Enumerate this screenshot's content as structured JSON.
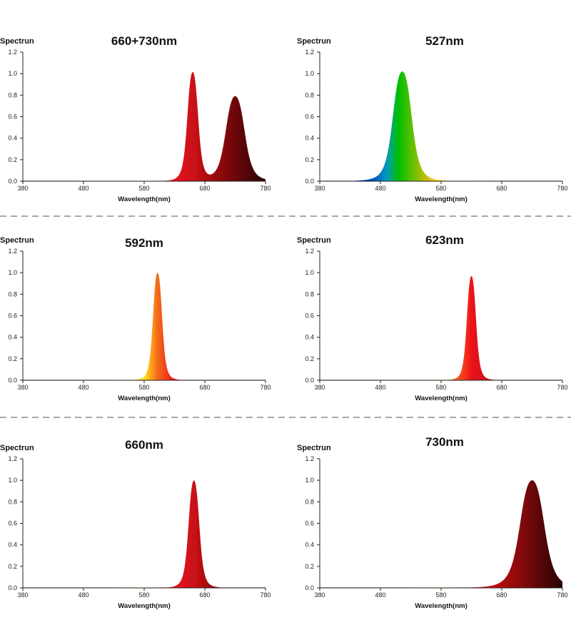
{
  "chart_data": [
    {
      "type": "area",
      "title": "660+730nm",
      "ylabel": "Spectrun",
      "xlabel": "Wavelength(nm)",
      "xlim": [
        380,
        780
      ],
      "ylim": [
        0,
        1.2
      ],
      "xticks": [
        "380",
        "480",
        "580",
        "680",
        "780"
      ],
      "yticks": [
        "0.0",
        "0.2",
        "0.4",
        "0.6",
        "0.8",
        "1.0",
        "1.2"
      ],
      "series": [
        {
          "peaks": [
            {
              "center": 660,
              "height": 1.01,
              "fwhm": 20
            },
            {
              "center": 730,
              "height": 0.79,
              "fwhm": 35
            }
          ]
        }
      ]
    },
    {
      "type": "area",
      "title": "527nm",
      "ylabel": "Spectrun",
      "xlabel": "Wavelength(nm)",
      "xlim": [
        380,
        780
      ],
      "ylim": [
        0,
        1.2
      ],
      "xticks": [
        "380",
        "480",
        "580",
        "680",
        "780"
      ],
      "yticks": [
        "0.0",
        "0.2",
        "0.4",
        "0.6",
        "0.8",
        "1.0",
        "1.2"
      ],
      "series": [
        {
          "peaks": [
            {
              "center": 516,
              "height": 1.02,
              "fwhm": 35
            }
          ]
        }
      ]
    },
    {
      "type": "area",
      "title": "592nm",
      "ylabel": "Spectrun",
      "xlabel": "Wavelength(nm)",
      "xlim": [
        380,
        780
      ],
      "ylim": [
        0,
        1.2
      ],
      "xticks": [
        "380",
        "480",
        "580",
        "680",
        "780"
      ],
      "yticks": [
        "0.0",
        "0.2",
        "0.4",
        "0.6",
        "0.8",
        "1.0",
        "1.2"
      ],
      "series": [
        {
          "peaks": [
            {
              "center": 602,
              "height": 1.0,
              "fwhm": 17
            }
          ]
        }
      ]
    },
    {
      "type": "area",
      "title": "623nm",
      "ylabel": "Spectrun",
      "xlabel": "Wavelength(nm)",
      "xlim": [
        380,
        780
      ],
      "ylim": [
        0,
        1.2
      ],
      "xticks": [
        "380",
        "480",
        "580",
        "680",
        "780"
      ],
      "yticks": [
        "0.0",
        "0.2",
        "0.4",
        "0.6",
        "0.8",
        "1.0",
        "1.2"
      ],
      "series": [
        {
          "peaks": [
            {
              "center": 630,
              "height": 0.97,
              "fwhm": 17
            }
          ]
        }
      ]
    },
    {
      "type": "area",
      "title": "660nm",
      "ylabel": "Spectrun",
      "xlabel": "Wavelength(nm)",
      "xlim": [
        380,
        780
      ],
      "ylim": [
        0,
        1.2
      ],
      "xticks": [
        "380",
        "480",
        "580",
        "680",
        "780"
      ],
      "yticks": [
        "0.0",
        "0.2",
        "0.4",
        "0.6",
        "0.8",
        "1.0",
        "1.2"
      ],
      "series": [
        {
          "peaks": [
            {
              "center": 662,
              "height": 1.0,
              "fwhm": 20
            }
          ]
        }
      ]
    },
    {
      "type": "area",
      "title": "730nm",
      "ylabel": "Spectrun",
      "xlabel": "Wavelength(nm)",
      "xlim": [
        380,
        780
      ],
      "ylim": [
        0,
        1.2
      ],
      "xticks": [
        "380",
        "480",
        "580",
        "680",
        "780"
      ],
      "yticks": [
        "0.0",
        "0.2",
        "0.4",
        "0.6",
        "0.8",
        "1.0",
        "1.2"
      ],
      "series": [
        {
          "peaks": [
            {
              "center": 730,
              "height": 1.0,
              "fwhm": 45
            }
          ]
        }
      ]
    }
  ]
}
